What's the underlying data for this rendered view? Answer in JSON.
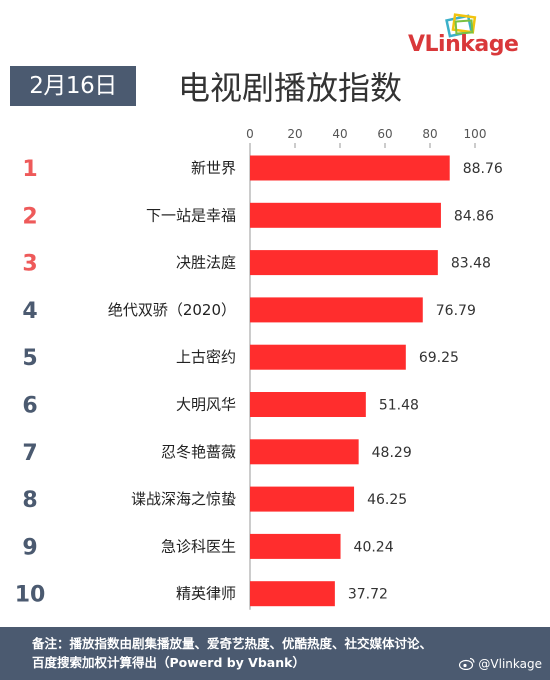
{
  "logo": {
    "text": "VLinkage"
  },
  "date_badge": "2月16日",
  "title": "电视剧播放指数",
  "colors": {
    "bar": "#ff2d2d",
    "rank_top": "#ee5a5a",
    "rank_rest": "#4b5a70",
    "header_bg": "#4b5a70"
  },
  "chart_data": {
    "type": "bar",
    "orientation": "horizontal",
    "title": "电视剧播放指数",
    "xlim": [
      0,
      100
    ],
    "xticks": [
      0,
      20,
      40,
      60,
      80,
      100
    ],
    "grid": false,
    "ranks": [
      "1",
      "2",
      "3",
      "4",
      "5",
      "6",
      "7",
      "8",
      "9",
      "10"
    ],
    "categories": [
      "新世界",
      "下一站是幸福",
      "决胜法庭",
      "绝代双骄（2020）",
      "上古密约",
      "大明风华",
      "忍冬艳蔷薇",
      "谍战深海之惊蛰",
      "急诊科医生",
      "精英律师"
    ],
    "values": [
      88.76,
      84.86,
      83.48,
      76.79,
      69.25,
      51.48,
      48.29,
      46.25,
      40.24,
      37.72
    ]
  },
  "footer": {
    "note_line1": "备注：播放指数由剧集播放量、爱奇艺热度、优酷热度、社交媒体讨论、",
    "note_line2": "百度搜索加权计算得出（Powerd by Vbank）",
    "watermark": "@Vlinkage"
  }
}
